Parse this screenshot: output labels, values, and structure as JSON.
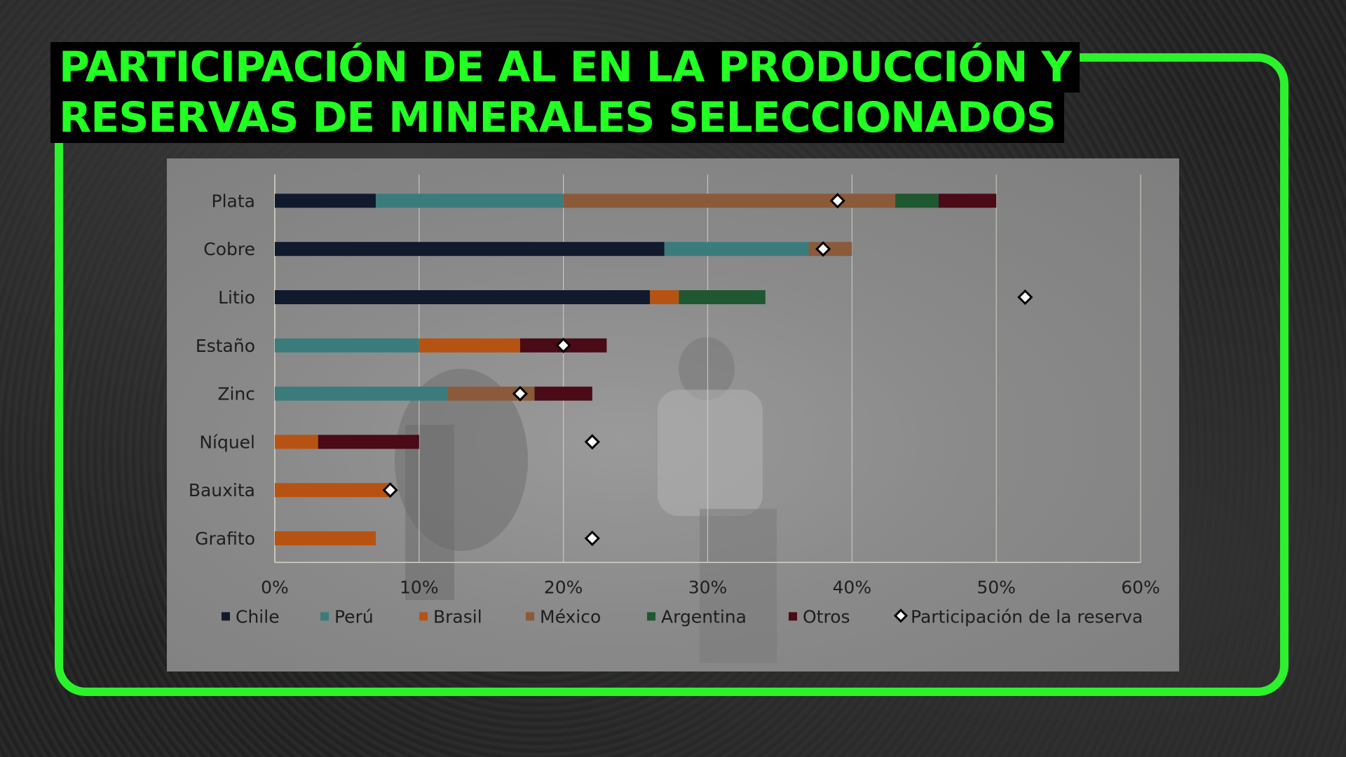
{
  "title": {
    "line1": "PARTICIPACIÓN DE AL EN LA PRODUCCIÓN Y",
    "line2": "RESERVAS DE MINERALES SELECCIONADOS"
  },
  "colors": {
    "frame": "#2cf22c",
    "title_text": "#22ff22",
    "title_bg": "#000000"
  },
  "chart_data": {
    "type": "bar",
    "orientation": "horizontal",
    "stacked": true,
    "categories": [
      "Plata",
      "Cobre",
      "Litio",
      "Estaño",
      "Zinc",
      "Níquel",
      "Bauxita",
      "Grafito"
    ],
    "series": [
      {
        "name": "Chile",
        "color": "#101a2c",
        "values": [
          7,
          27,
          26,
          0,
          0,
          0,
          0,
          0
        ]
      },
      {
        "name": "Perú",
        "color": "#3a7c7b",
        "values": [
          13,
          10,
          0,
          10,
          12,
          0,
          0,
          0
        ]
      },
      {
        "name": "Brasil",
        "color": "#b75312",
        "values": [
          0,
          0,
          2,
          7,
          0,
          3,
          8,
          7
        ]
      },
      {
        "name": "México",
        "color": "#8a5a3a",
        "values": [
          23,
          3,
          0,
          0,
          6,
          0,
          0,
          0
        ]
      },
      {
        "name": "Argentina",
        "color": "#1f5730",
        "values": [
          3,
          0,
          6,
          0,
          0,
          0,
          0,
          0
        ]
      },
      {
        "name": "Otros",
        "color": "#4a0a16",
        "values": [
          4,
          0,
          0,
          6,
          4,
          7,
          0,
          0
        ]
      }
    ],
    "reserve_series": {
      "name": "Participación de la reserva",
      "marker": "diamond",
      "values": [
        39,
        38,
        52,
        20,
        17,
        22,
        8,
        22
      ]
    },
    "xlim": [
      0,
      60
    ],
    "xticks": [
      "0%",
      "10%",
      "20%",
      "30%",
      "40%",
      "50%",
      "60%"
    ],
    "grid": true,
    "legend_position": "bottom"
  }
}
